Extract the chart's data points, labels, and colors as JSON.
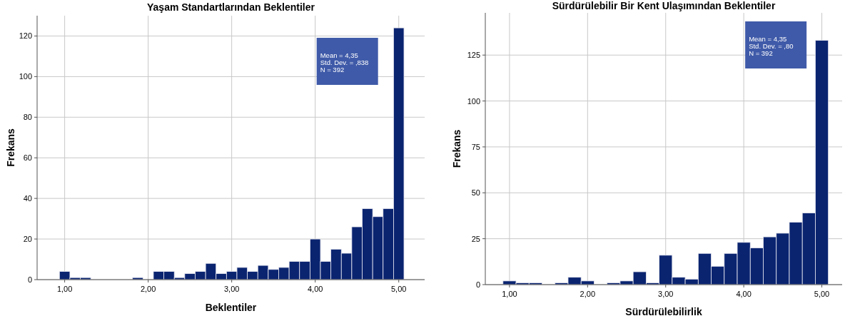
{
  "chart_data": [
    {
      "type": "histogram",
      "title": "Yaşam Standartlarından Beklentiler",
      "xlabel": "Beklentiler",
      "ylabel": "Frekans",
      "color": "#0a2470",
      "bins": [
        0.9375,
        1.0625,
        1.1875,
        1.3125,
        1.4375,
        1.5625,
        1.6875,
        1.8125,
        1.9375,
        2.0625,
        2.1875,
        2.3125,
        2.4375,
        2.5625,
        2.6875,
        2.8125,
        2.9375,
        3.0625,
        3.1875,
        3.3125,
        3.4375,
        3.5625,
        3.6875,
        3.8125,
        3.9375,
        4.0625,
        4.1875,
        4.3125,
        4.4375,
        4.5625,
        4.6875,
        4.8125,
        4.9375,
        5.0625
      ],
      "values": [
        4,
        1,
        1,
        0,
        0,
        0,
        0,
        1,
        0,
        4,
        4,
        1,
        3,
        4,
        8,
        3,
        4,
        6,
        4,
        7,
        5,
        6,
        9,
        9,
        20,
        9,
        15,
        13,
        26,
        35,
        31,
        35,
        124
      ],
      "xlim": [
        0.67,
        5.31
      ],
      "ylim": [
        0,
        130
      ],
      "xticks": [
        {
          "value": 1,
          "label": "1,00"
        },
        {
          "value": 2,
          "label": "2,00"
        },
        {
          "value": 3,
          "label": "3,00"
        },
        {
          "value": 4,
          "label": "4,00"
        },
        {
          "value": 5,
          "label": "5,00"
        }
      ],
      "yticks": [
        0,
        20,
        40,
        60,
        80,
        100,
        120
      ],
      "grid": true,
      "annotations": [
        "Mean = 4,35",
        "Std. Dev. = ,838",
        "N = 392"
      ]
    },
    {
      "type": "histogram",
      "title": "Sürdürülebilir Bir Kent Ulaşımından Beklentiler",
      "xlabel": "Sürdürülebilirlik",
      "ylabel": "Frekans",
      "color": "#0a2470",
      "bins": [
        0.9167,
        1.0833,
        1.25,
        1.4167,
        1.5833,
        1.75,
        1.9167,
        2.0833,
        2.25,
        2.4167,
        2.5833,
        2.75,
        2.9167,
        3.0833,
        3.25,
        3.4167,
        3.5833,
        3.75,
        3.9167,
        4.0833,
        4.25,
        4.4167,
        4.5833,
        4.75,
        4.9167,
        5.0833
      ],
      "values": [
        2,
        1,
        1,
        0,
        1,
        4,
        2,
        0,
        1,
        2,
        7,
        1,
        16,
        4,
        3,
        17,
        10,
        17,
        23,
        20,
        26,
        28,
        34,
        39,
        133
      ],
      "xlim": [
        0.69,
        5.26
      ],
      "ylim": [
        0,
        148
      ],
      "xticks": [
        {
          "value": 1,
          "label": "1,00"
        },
        {
          "value": 2,
          "label": "2,00"
        },
        {
          "value": 3,
          "label": "3,00"
        },
        {
          "value": 4,
          "label": "4,00"
        },
        {
          "value": 5,
          "label": "5,00"
        }
      ],
      "yticks": [
        0,
        25,
        50,
        75,
        100,
        125
      ],
      "grid": true,
      "annotations": [
        "Mean = 4,35",
        "Std. Dev. = ,80",
        "N = 392"
      ]
    }
  ]
}
